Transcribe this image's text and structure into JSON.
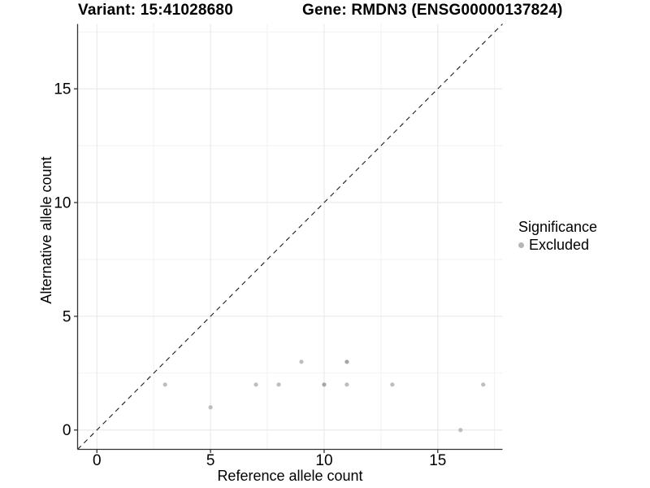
{
  "header": {
    "title_left": "Variant: 15:41028680",
    "title_right": "Gene: RMDN3 (ENSG00000137824)"
  },
  "chart_data": {
    "type": "scatter",
    "xlabel": "Reference allele count",
    "ylabel": "Alternative allele count",
    "xlim": [
      0,
      17
    ],
    "ylim": [
      0,
      17
    ],
    "x_ticks": [
      0,
      5,
      10,
      15
    ],
    "y_ticks": [
      0,
      5,
      10,
      15
    ],
    "x_minor_ticks": [
      2.5,
      7.5,
      12.5,
      17.5
    ],
    "y_minor_ticks": [
      2.5,
      7.5,
      12.5,
      17.5
    ],
    "grid": true,
    "identity_line": {
      "slope": 1,
      "intercept": 0,
      "style": "dashed",
      "color": "#1a1a1a"
    },
    "legend_position": "right",
    "legend": {
      "title": "Significance",
      "items": [
        {
          "label": "Excluded",
          "color": "#b5b5b5"
        }
      ]
    },
    "series": [
      {
        "name": "Excluded",
        "color": "#bebebe",
        "color_overlap": "#a6a6a6",
        "points": [
          {
            "x": 3,
            "y": 2
          },
          {
            "x": 5,
            "y": 1
          },
          {
            "x": 7,
            "y": 2
          },
          {
            "x": 8,
            "y": 2
          },
          {
            "x": 9,
            "y": 3
          },
          {
            "x": 10,
            "y": 2,
            "overlap": true
          },
          {
            "x": 11,
            "y": 2
          },
          {
            "x": 11,
            "y": 3,
            "overlap": true
          },
          {
            "x": 13,
            "y": 2
          },
          {
            "x": 16,
            "y": 0
          },
          {
            "x": 17,
            "y": 2
          }
        ]
      }
    ],
    "colors": {
      "grid_major": "#e6e6e6",
      "grid_minor": "#f2f2f2",
      "axis_line": "#333333",
      "tick_text": "#000000"
    }
  }
}
